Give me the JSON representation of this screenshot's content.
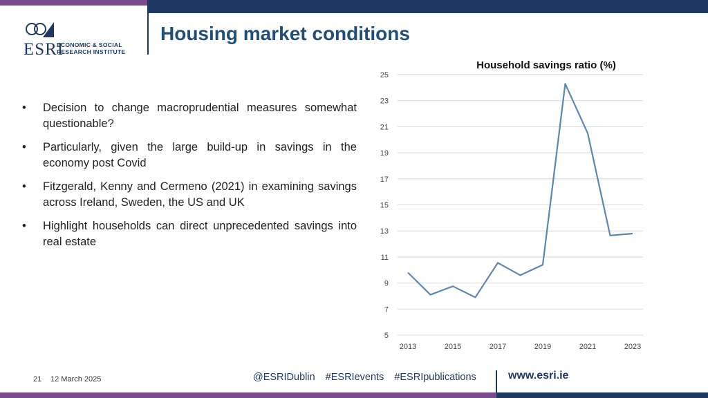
{
  "header": {
    "title": "Housing market conditions",
    "logo": {
      "wordmark": "ESRI",
      "line1": "ECONOMIC & SOCIAL",
      "line2": "RESEARCH INSTITUTE"
    }
  },
  "bullets": [
    "Decision to change macroprudential measures somewhat questionable?",
    "Particularly, given the large build-up in savings in the economy post Covid",
    "Fitzgerald, Kenny and Cermeno (2021) in examining savings across Ireland, Sweden, the US and UK",
    "Highlight households can direct unprecedented savings into real estate"
  ],
  "bullet_glyph": "•",
  "chart_data": {
    "type": "line",
    "title": "Household savings ratio (%)",
    "xlabel": "",
    "ylabel": "",
    "x": [
      2013,
      2014,
      2015,
      2016,
      2017,
      2018,
      2019,
      2020,
      2021,
      2022,
      2023
    ],
    "series": [
      {
        "values": [
          9.8,
          8.1,
          8.75,
          7.9,
          10.55,
          9.6,
          10.4,
          24.3,
          20.5,
          12.65,
          12.8
        ]
      }
    ],
    "x_ticks": [
      "2013",
      "2015",
      "2017",
      "2019",
      "2021",
      "2023"
    ],
    "y_ticks": [
      "5",
      "7",
      "9",
      "11",
      "13",
      "15",
      "17",
      "19",
      "21",
      "23",
      "25"
    ],
    "ylim": [
      5,
      25
    ],
    "xlim": [
      2013,
      2023
    ],
    "grid": true,
    "line_color": "#5b86b5"
  },
  "footer": {
    "page_number": "21",
    "date": "12 March 2025",
    "tags": [
      "@ESRIDublin",
      "#ESRIevents",
      "#ESRIpublications"
    ],
    "url": "www.esri.ie"
  },
  "colors": {
    "navy": "#1f3864",
    "purple": "#7b4b8f",
    "title_blue": "#1f4e79"
  }
}
